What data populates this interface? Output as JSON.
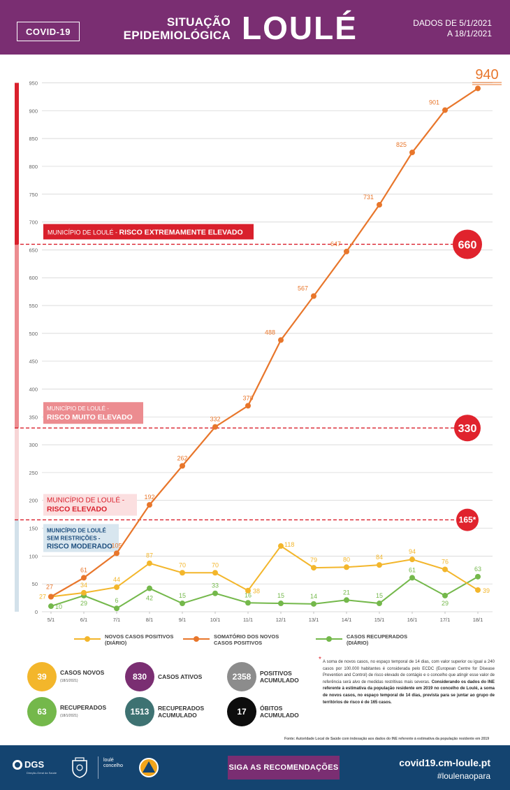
{
  "header": {
    "badge": "COVID-19",
    "subtitle_line1": "SITUAÇÃO",
    "subtitle_line2": "EPIDEMIOLÓGICA",
    "city": "LOULÉ",
    "dates_line1": "DADOS DE 5/1/2021",
    "dates_line2": "A 18/1/2021"
  },
  "chart_data": {
    "type": "line",
    "categories": [
      "5/1",
      "6/1",
      "7/1",
      "8/1",
      "9/1",
      "10/1",
      "11/1",
      "12/1",
      "13/1",
      "14/1",
      "15/1",
      "16/1",
      "17/1",
      "18/1"
    ],
    "ylim": [
      0,
      950
    ],
    "yticks": [
      0,
      50,
      100,
      150,
      200,
      250,
      300,
      350,
      400,
      450,
      500,
      550,
      600,
      650,
      700,
      750,
      800,
      850,
      900,
      950
    ],
    "grid": true,
    "series": [
      {
        "name": "SOMATÓRIO DOS NOVOS CASOS POSITIVOS",
        "color": "#e8762b",
        "values": [
          27,
          61,
          105,
          192,
          262,
          332,
          370,
          488,
          567,
          647,
          731,
          825,
          901,
          940
        ]
      },
      {
        "name": "NOVOS CASOS POSITIVOS (DIÁRIO)",
        "color": "#f3b62b",
        "values": [
          27,
          34,
          44,
          87,
          70,
          70,
          38,
          118,
          79,
          80,
          84,
          94,
          76,
          39
        ]
      },
      {
        "name": "CASOS RECUPERADOS (DIÁRIO)",
        "color": "#74b84b",
        "values": [
          10,
          29,
          6,
          42,
          15,
          33,
          16,
          15,
          14,
          21,
          15,
          61,
          29,
          63
        ]
      }
    ],
    "final_value_label": "940",
    "thresholds": [
      {
        "value": 660,
        "label": "660"
      },
      {
        "value": 330,
        "label": "330"
      },
      {
        "value": 165,
        "label": "165*"
      }
    ],
    "risk_zones": [
      {
        "line1": "MUNICÍPIO DE LOULÉ - ",
        "line2": "RISCO EXTREMAMENTE ELEVADO",
        "bar_color": "#d9202c",
        "box_color": "#d9202c",
        "text_color": "#ffffff"
      },
      {
        "line1": "MUNICÍPIO DE LOULÉ -",
        "line2": "RISCO MUITO ELEVADO",
        "bar_color": "#ec8c90",
        "box_color": "#ec8c90",
        "text_color": "#ffffff"
      },
      {
        "line1": "MUNICÍPIO DE LOULÉ  -",
        "line2": "RISCO ELEVADO",
        "bar_color": "#f7d5d6",
        "box_color": "#fbdfe0",
        "text_color": "#d9202c"
      },
      {
        "line1": "MUNICÍPIO DE LOULÉ",
        "line1b": "SEM RESTRIÇÕES -",
        "line2": "RISCO MODERADO",
        "bar_color": "#d3e1ea",
        "box_color": "#d8e6ef",
        "text_color": "#1d4e7e"
      }
    ]
  },
  "stats": [
    {
      "value": "39",
      "label": "CASOS NOVOS",
      "sub": "(18/1/2021)",
      "color": "#f3b62b"
    },
    {
      "value": "830",
      "label": "CASOS ATIVOS",
      "sub": "",
      "color": "#7a2e72"
    },
    {
      "value": "2358",
      "label": "POSITIVOS ACUMULADO",
      "sub": "",
      "color": "#8c8c8c"
    },
    {
      "value": "63",
      "label": "RECUPERADOS",
      "sub": "(18/1/2021)",
      "color": "#74b84b"
    },
    {
      "value": "1513",
      "label": "RECUPERADOS ACUMULADO",
      "sub": "",
      "color": "#3e7272"
    },
    {
      "value": "17",
      "label": "ÓBITOS ACUMULADO",
      "sub": "",
      "color": "#0d0d0d"
    }
  ],
  "note": {
    "text": "A soma de novos casos, no espaço temporal de 14 dias, com valor superior ou igual a 240 casos por 100.000 habitantes é considerada pelo ECDC (European Centre for Disease Prevention and Control) de risco elevado de contágio e o concelho que atingir esse valor de referência será alvo de medidas restritivas mais severas.",
    "bold": "Considerando os dados do INE referente à estimativa da população residente em 2019 no concelho de Loulé, a soma de novos casos, no espaço temporal de 14 dias, prevista para se juntar ao grupo de territórios de risco é de 165 casos."
  },
  "source": "Fonte: Autoridade Local de Saúde com indexação aos dados do INE referente à estimativa da população residente em 2019",
  "footer": {
    "dgs": "DGS",
    "dgs_sub": "Direção-Geral da Saúde",
    "concelho": "loulé concelho",
    "button": "SIGA AS RECOMENDAÇÕES",
    "site": "covid19.cm-loule.pt",
    "hashtag": "#loulenaopara"
  },
  "icons": [
    "crest-icon",
    "civil-protection-icon"
  ]
}
